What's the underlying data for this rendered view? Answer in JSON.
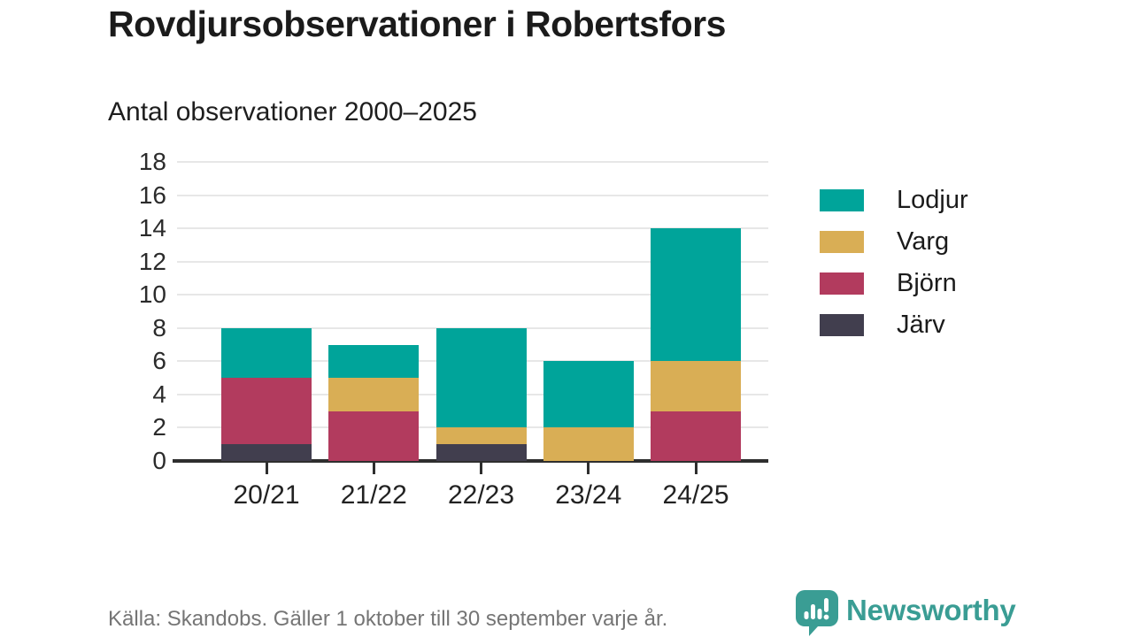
{
  "title": "Rovdjursobservationer i Robertsfors",
  "subtitle": "Antal observationer 2000–2025",
  "footer": {
    "source": "Källa: Skandobs. Gäller 1 oktober till 30 september varje år.",
    "brand": "Newsworthy"
  },
  "colors": {
    "lodjur": "#00a49a",
    "varg": "#d9ae55",
    "bjorn": "#b23b5e",
    "jarv": "#413e4e",
    "grid": "#e7e7e7",
    "axis": "#2e2e2e",
    "brand_teal": "#3a9d94",
    "title_text": "#1b1b1b",
    "footer_gray": "#757575"
  },
  "chart_data": {
    "type": "bar",
    "stacked": true,
    "title": "Rovdjursobservationer i Robertsfors",
    "subtitle": "Antal observationer 2000–2025",
    "categories": [
      "20/21",
      "21/22",
      "22/23",
      "23/24",
      "24/25"
    ],
    "series": [
      {
        "name": "Järv",
        "color": "#413e4e",
        "values": [
          1,
          0,
          1,
          0,
          0
        ]
      },
      {
        "name": "Björn",
        "color": "#b23b5e",
        "values": [
          4,
          3,
          0,
          0,
          3
        ]
      },
      {
        "name": "Varg",
        "color": "#d9ae55",
        "values": [
          0,
          2,
          1,
          2,
          3
        ]
      },
      {
        "name": "Lodjur",
        "color": "#00a49a",
        "values": [
          3,
          2,
          6,
          4,
          8
        ]
      }
    ],
    "totals": [
      8,
      7,
      8,
      6,
      14
    ],
    "xlabel": "",
    "ylabel": "",
    "ylim": [
      0,
      18
    ],
    "yticks": [
      0,
      2,
      4,
      6,
      8,
      10,
      12,
      14,
      16,
      18
    ],
    "grid": true,
    "legend_position": "right",
    "legend_order": [
      "Lodjur",
      "Varg",
      "Björn",
      "Järv"
    ]
  }
}
